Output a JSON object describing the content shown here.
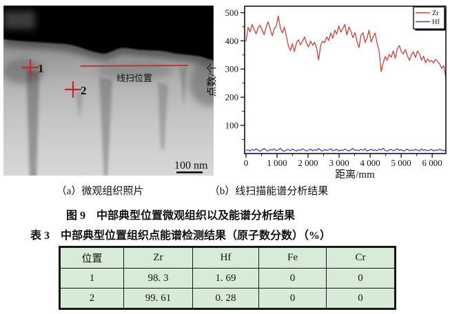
{
  "figure": {
    "micrograph": {
      "point1_label": "1",
      "point2_label": "2",
      "line_scan_label": "线扫位置",
      "scale_bar_label": "100 nm",
      "caption": "（a）微观组织照片"
    },
    "chart_caption": "（b）线扫描能谱分析结果",
    "caption": "图 9　中部典型位置微观组织以及能谱分析结果"
  },
  "chart_data": {
    "type": "line",
    "title": "",
    "xlabel": "距离/mm",
    "ylabel": "点数/个",
    "xlim": [
      0,
      6440
    ],
    "ylim": [
      0,
      523
    ],
    "x_step": 65,
    "x_ticks": [
      0,
      1000,
      2000,
      3000,
      4000,
      5000,
      6000
    ],
    "x_tick_labels": [
      "0",
      "1 000",
      "2 000",
      "3 000",
      "4 000",
      "5 000",
      "6 000"
    ],
    "y_ticks": [
      100,
      200,
      300,
      400,
      500
    ],
    "grid": false,
    "legend": [
      "Zr",
      "Hf"
    ],
    "legend_position": "top-right",
    "colors": {
      "Zr": "#c8403a",
      "Hf": "#3847b0",
      "axis": "#111111",
      "annotation_red": "#cc2222"
    },
    "series": [
      {
        "name": "Zr",
        "values": [
          398,
          448,
          432,
          458,
          441,
          425,
          447,
          455,
          438,
          422,
          450,
          468,
          441,
          418,
          444,
          452,
          488,
          446,
          428,
          449,
          418,
          382,
          366,
          390,
          362,
          394,
          404,
          386,
          399,
          414,
          391,
          379,
          399,
          384,
          395,
          374,
          332,
          384,
          399,
          394,
          414,
          401,
          428,
          409,
          438,
          424,
          453,
          431,
          444,
          458,
          421,
          449,
          434,
          411,
          429,
          399,
          376,
          419,
          429,
          394,
          409,
          438,
          396,
          414,
          428,
          391,
          362,
          291,
          322,
          344,
          331,
          352,
          342,
          364,
          338,
          372,
          384,
          361,
          354,
          369,
          347,
          331,
          351,
          361,
          341,
          364,
          354,
          331,
          346,
          322,
          336,
          326,
          331,
          321,
          334,
          327,
          318,
          302,
          312,
          271
        ]
      },
      {
        "name": "Hf",
        "values": [
          10,
          13,
          9,
          15,
          11,
          17,
          12,
          8,
          14,
          18,
          11,
          9,
          15,
          12,
          17,
          10,
          13,
          19,
          11,
          8,
          12,
          15,
          10,
          16,
          12,
          9,
          14,
          11,
          17,
          13,
          9,
          12,
          16,
          10,
          14,
          11,
          18,
          12,
          9,
          15,
          11,
          13,
          17,
          10,
          12,
          15,
          9,
          13,
          11,
          16,
          12,
          9,
          14,
          18,
          11,
          13,
          10,
          15,
          12,
          17,
          9,
          12,
          15,
          11,
          13,
          10,
          16,
          12,
          19,
          11,
          9,
          13,
          15,
          10,
          12,
          17,
          11,
          14,
          9,
          12,
          16,
          10,
          13,
          11,
          15,
          12,
          9,
          17,
          11,
          14,
          10,
          12,
          15,
          9,
          13,
          11,
          16,
          12,
          10,
          13
        ]
      }
    ]
  },
  "table": {
    "caption": "表 3　中部典型位置组织点能谱检测结果（原子数分数）（%）",
    "headers": [
      "位置",
      "Zr",
      "Hf",
      "Fe",
      "Cr"
    ],
    "rows": [
      [
        "1",
        "98. 3",
        "1. 69",
        "0",
        "0"
      ],
      [
        "2",
        "99. 61",
        "0. 28",
        "0",
        "0"
      ]
    ],
    "bg_color": "#d7ebd8"
  }
}
